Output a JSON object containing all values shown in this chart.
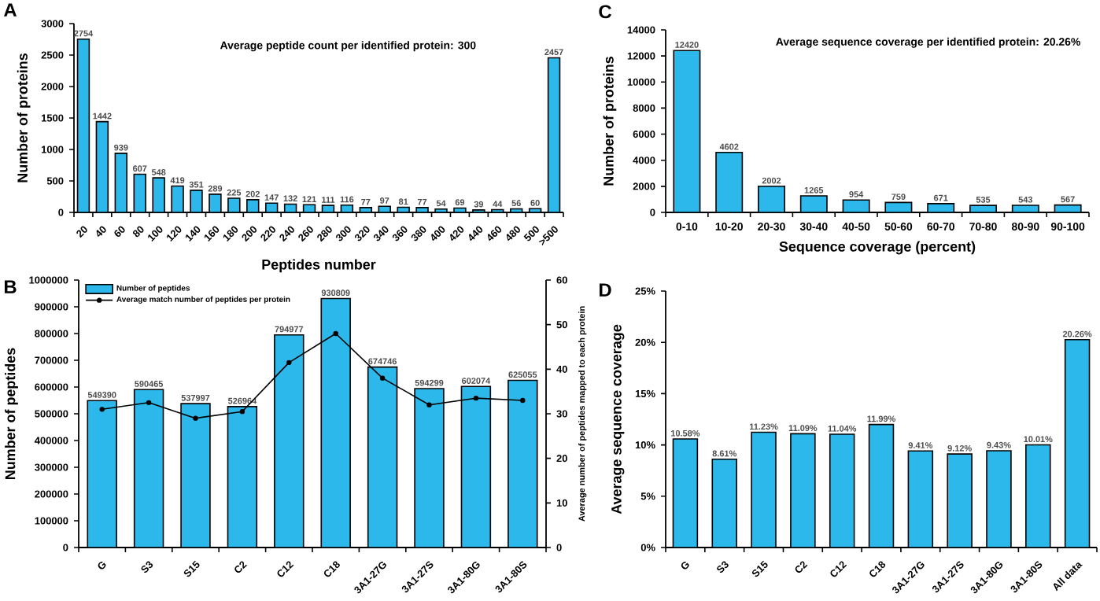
{
  "chart_data": [
    {
      "type": "bar",
      "title": "A",
      "xlabel": "Peptides number",
      "ylabel": "Number of proteins",
      "annotations": [
        "Average peptide count per identified protein: 300"
      ],
      "categories": [
        "20",
        "40",
        "60",
        "80",
        "100",
        "120",
        "140",
        "160",
        "180",
        "200",
        "220",
        "240",
        "260",
        "280",
        "300",
        "320",
        "340",
        "360",
        "380",
        "400",
        "420",
        "440",
        "460",
        "480",
        "500",
        ">500"
      ],
      "values": [
        2754,
        1442,
        939,
        607,
        548,
        419,
        351,
        289,
        225,
        202,
        147,
        132,
        121,
        111,
        116,
        77,
        97,
        81,
        77,
        54,
        69,
        39,
        44,
        56,
        60,
        2457
      ],
      "value_labels": [
        "2754",
        "1442",
        "939",
        "607",
        "548",
        "419",
        "351",
        "289",
        "225",
        "202",
        "147",
        "132",
        "121",
        "111",
        "116",
        "77",
        "97",
        "81",
        "77",
        "54",
        "69",
        "39",
        "44",
        "56",
        "60",
        "2457"
      ],
      "color": "#2cb8ea",
      "ylim": [
        0,
        3000
      ],
      "yticks": [
        0,
        500,
        1000,
        1500,
        2000,
        2500,
        3000
      ]
    },
    {
      "type": "bar",
      "title": "B",
      "ylabel": "Number of peptides",
      "y2label": "Average number of peptides mapped to each protein",
      "legend": "top left",
      "marker": "circle",
      "line_style": "solid",
      "categories": [
        "G",
        "S3",
        "S15",
        "C2",
        "C12",
        "C18",
        "3A1-27G",
        "3A1-27S",
        "3A1-80G",
        "3A1-80S"
      ],
      "series": [
        {
          "name": "Number of peptides",
          "type": "bar",
          "color": "#2cb8ea",
          "values": [
            549390,
            590465,
            537997,
            526964,
            794977,
            930809,
            674746,
            594299,
            602074,
            625055
          ],
          "value_labels": [
            "549390",
            "590465",
            "537997",
            "526964",
            "794977",
            "930809",
            "674746",
            "594299",
            "602074",
            "625055"
          ]
        },
        {
          "name": "Average match number of peptides per protein",
          "type": "line",
          "axis": "y2",
          "color": "#000000",
          "values": [
            31,
            32.5,
            29,
            30.5,
            41.5,
            48,
            38,
            32,
            33.5,
            33
          ]
        }
      ],
      "ylim": [
        0,
        1000000
      ],
      "yticks": [
        0,
        100000,
        200000,
        300000,
        400000,
        500000,
        600000,
        700000,
        800000,
        900000,
        1000000
      ],
      "y2lim": [
        0,
        60
      ],
      "y2ticks": [
        0,
        10,
        20,
        30,
        40,
        50,
        60
      ]
    },
    {
      "type": "bar",
      "title": "C",
      "xlabel": "Sequence coverage (percent)",
      "ylabel": "Number of proteins",
      "annotations": [
        "Average sequence coverage per identified protein: 20.26%"
      ],
      "categories": [
        "0-10",
        "10-20",
        "20-30",
        "30-40",
        "40-50",
        "50-60",
        "60-70",
        "70-80",
        "80-90",
        "90-100"
      ],
      "values": [
        12420,
        4602,
        2002,
        1265,
        954,
        759,
        671,
        535,
        543,
        567
      ],
      "value_labels": [
        "12420",
        "4602",
        "2002",
        "1265",
        "954",
        "759",
        "671",
        "535",
        "543",
        "567"
      ],
      "color": "#2cb8ea",
      "ylim": [
        0,
        14000
      ],
      "yticks": [
        0,
        2000,
        4000,
        6000,
        8000,
        10000,
        12000,
        14000
      ]
    },
    {
      "type": "bar",
      "title": "D",
      "ylabel": "Average sequence coverage",
      "categories": [
        "G",
        "S3",
        "S15",
        "C2",
        "C12",
        "C18",
        "3A1-27G",
        "3A1-27S",
        "3A1-80G",
        "3A1-80S",
        "All data"
      ],
      "values": [
        10.58,
        8.61,
        11.23,
        11.09,
        11.04,
        11.99,
        9.41,
        9.12,
        9.43,
        10.01,
        20.26
      ],
      "value_labels": [
        "10.58%",
        "8.61%",
        "11.23%",
        "11.09%",
        "11.04%",
        "11.99%",
        "9.41%",
        "9.12%",
        "9.43%",
        "10.01%",
        "20.26%"
      ],
      "color": "#2cb8ea",
      "ylim": [
        0,
        25
      ],
      "yticks": [
        {
          "value": 0,
          "label": "0%"
        },
        {
          "value": 5,
          "label": "5%"
        },
        {
          "value": 10,
          "label": "10%"
        },
        {
          "value": 15,
          "label": "15%"
        },
        {
          "value": 20,
          "label": "20%"
        },
        {
          "value": 25,
          "label": "25%"
        }
      ]
    }
  ]
}
